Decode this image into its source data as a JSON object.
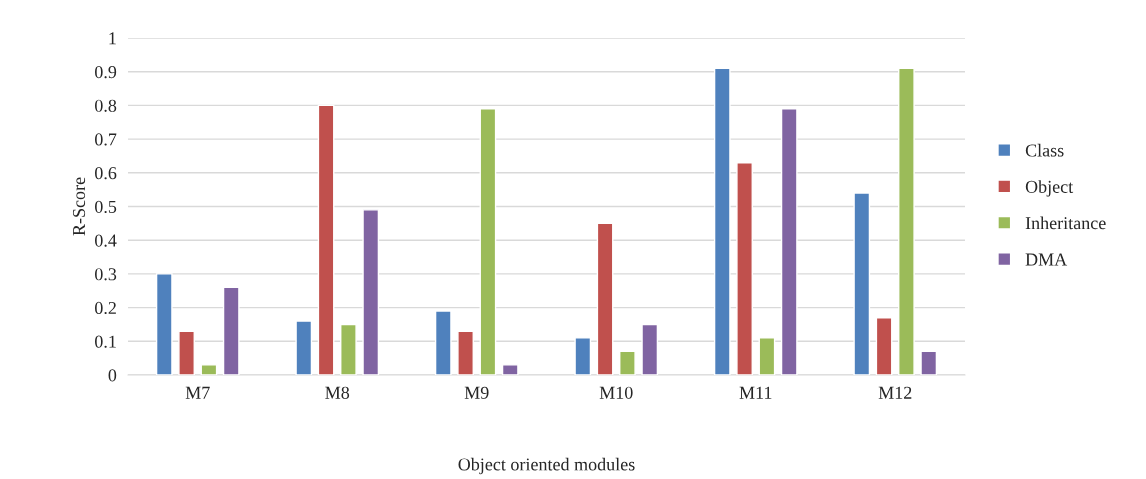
{
  "chart_data": {
    "type": "bar",
    "xlabel": "Object oriented modules",
    "ylabel": "R-Score",
    "categories": [
      "M7",
      "M8",
      "M9",
      "M10",
      "M11",
      "M12"
    ],
    "series": [
      {
        "name": "Class",
        "color": "#4f81bd",
        "values": [
          0.3,
          0.16,
          0.19,
          0.11,
          0.91,
          0.54
        ]
      },
      {
        "name": "Object",
        "color": "#c0504d",
        "values": [
          0.13,
          0.8,
          0.13,
          0.45,
          0.63,
          0.17
        ]
      },
      {
        "name": "Inheritance",
        "color": "#9bbb59",
        "values": [
          0.03,
          0.15,
          0.79,
          0.07,
          0.11,
          0.91
        ]
      },
      {
        "name": "DMA",
        "color": "#8064a2",
        "values": [
          0.26,
          0.49,
          0.03,
          0.15,
          0.79,
          0.07
        ]
      }
    ],
    "ylim": [
      0,
      1
    ],
    "yticks": [
      0,
      0.1,
      0.2,
      0.3,
      0.4,
      0.5,
      0.6,
      0.7,
      0.8,
      0.9,
      1
    ],
    "grid": "y",
    "legend": "right"
  }
}
